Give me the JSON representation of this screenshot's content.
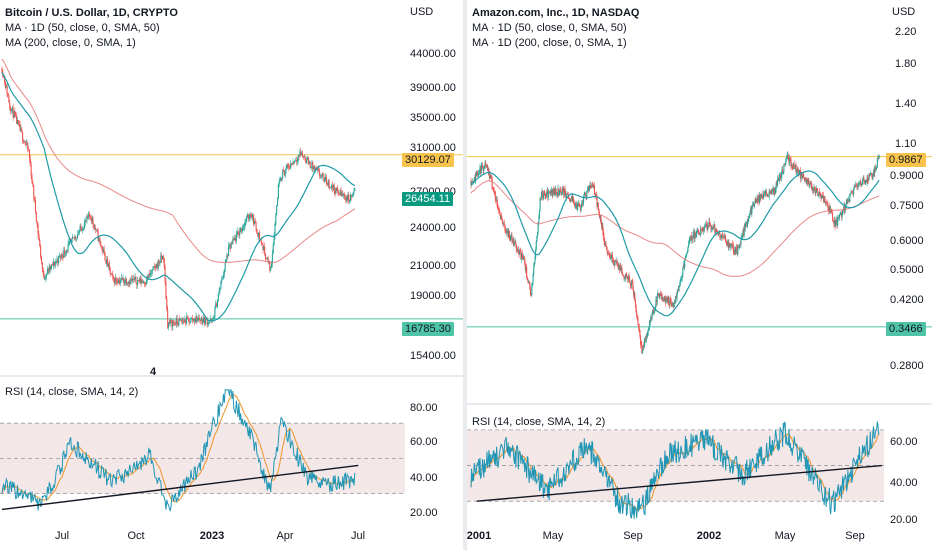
{
  "colors": {
    "up": "#26a69a",
    "down": "#ef5350",
    "ma50": "#1e9aa8",
    "ma200": "#e57373",
    "resistance": "#f7c34a",
    "support": "#4fc3a6",
    "rsi_line": "#2196b5",
    "rsi_ma": "#f0932b",
    "rsi_band": "#f3e7e7",
    "current_badge": "#089981"
  },
  "left": {
    "legend": {
      "title": "Bitcoin / U.S. Dollar, 1D, CRYPTO",
      "ma50": "MA · 1D (50, close, 0, SMA, 50)",
      "ma200": "MA (200, close, 0, SMA, 1)"
    },
    "currency": "USD",
    "price_axis": [
      "44000.00",
      "39000.00",
      "35000.00",
      "31000.00",
      "27000.00",
      "24000.00",
      "21000.00",
      "19000.00",
      "15400.00"
    ],
    "badges": {
      "resistance": "30129.07",
      "current": "26454.11",
      "support": "16785.30"
    },
    "rsi_legend": "RSI (14, close, SMA, 14, 2)",
    "rsi_axis": [
      "80.00",
      "60.00",
      "40.00",
      "20.00"
    ],
    "x_labels": [
      "Jul",
      "Oct",
      "2023",
      "Apr",
      "Jul"
    ],
    "stray_mark": "4",
    "chart_data": {
      "type": "candlestick",
      "title": "Bitcoin / U.S. Dollar, 1D, CRYPTO",
      "ylabel": "USD",
      "y_scale": "log",
      "ylim": [
        14500,
        47000
      ],
      "x_start": "2022-05-01",
      "x_end": "2023-07-20",
      "key_points": [
        {
          "x": "2022-05-01",
          "y": 41000
        },
        {
          "x": "2022-05-10",
          "y": 36000
        },
        {
          "x": "2022-06-01",
          "y": 30500
        },
        {
          "x": "2022-06-18",
          "y": 19500
        },
        {
          "x": "2022-07-15",
          "y": 21500
        },
        {
          "x": "2022-08-12",
          "y": 24300
        },
        {
          "x": "2022-09-07",
          "y": 19300
        },
        {
          "x": "2022-10-15",
          "y": 19200
        },
        {
          "x": "2022-11-05",
          "y": 21000
        },
        {
          "x": "2022-11-10",
          "y": 16500
        },
        {
          "x": "2022-12-15",
          "y": 16800
        },
        {
          "x": "2023-01-01",
          "y": 16600
        },
        {
          "x": "2023-01-20",
          "y": 21500
        },
        {
          "x": "2023-02-15",
          "y": 24500
        },
        {
          "x": "2023-03-10",
          "y": 20000
        },
        {
          "x": "2023-03-20",
          "y": 27800
        },
        {
          "x": "2023-04-14",
          "y": 30300
        },
        {
          "x": "2023-05-01",
          "y": 28500
        },
        {
          "x": "2023-05-25",
          "y": 26500
        },
        {
          "x": "2023-06-10",
          "y": 25700
        },
        {
          "x": "2023-06-16",
          "y": 26454
        }
      ],
      "series": [
        {
          "name": "MA · 1D (50, close, 0, SMA, 50)",
          "role": "ma50"
        },
        {
          "name": "MA (200, close, 0, SMA, 1)",
          "role": "ma200"
        }
      ],
      "horizontal_levels": [
        {
          "value": 30129.07,
          "role": "resistance"
        },
        {
          "value": 16785.3,
          "role": "support"
        }
      ],
      "rsi": {
        "label": "RSI (14, close, SMA, 14, 2)",
        "ylim": [
          15,
          90
        ],
        "band": [
          30,
          70
        ],
        "midline": 50,
        "key_points": [
          {
            "x": "2022-05-01",
            "y": 35
          },
          {
            "x": "2022-06-18",
            "y": 24
          },
          {
            "x": "2022-07-20",
            "y": 58
          },
          {
            "x": "2022-09-07",
            "y": 36
          },
          {
            "x": "2022-10-20",
            "y": 52
          },
          {
            "x": "2022-11-10",
            "y": 22
          },
          {
            "x": "2022-12-15",
            "y": 44
          },
          {
            "x": "2023-01-18",
            "y": 90
          },
          {
            "x": "2023-02-15",
            "y": 63
          },
          {
            "x": "2023-03-10",
            "y": 30
          },
          {
            "x": "2023-03-22",
            "y": 73
          },
          {
            "x": "2023-04-20",
            "y": 40
          },
          {
            "x": "2023-05-12",
            "y": 35
          },
          {
            "x": "2023-06-16",
            "y": 38
          }
        ],
        "trendline": [
          {
            "x": "2022-05-01",
            "y": 21
          },
          {
            "x": "2023-06-20",
            "y": 46
          }
        ]
      }
    }
  },
  "right": {
    "legend": {
      "title": "Amazon.com, Inc., 1D, NASDAQ",
      "ma50": "MA · 1D (50, close, 0, SMA, 50)",
      "ma200": "MA · 1D (200, close, 0, SMA, 1)"
    },
    "currency": "USD",
    "price_axis": [
      "2.20",
      "1.80",
      "1.40",
      "1.10",
      "0.9000",
      "0.7500",
      "0.6000",
      "0.5000",
      "0.4200",
      "0.2800"
    ],
    "badges": {
      "resistance": "0.9867",
      "support": "0.3466"
    },
    "rsi_legend": "RSI (14, close, SMA, 14, 2)",
    "rsi_axis": [
      "60.00",
      "40.00",
      "20.00"
    ],
    "x_labels": [
      "2001",
      "May",
      "Sep",
      "2002",
      "May",
      "Sep"
    ],
    "chart_data": {
      "type": "candlestick",
      "title": "Amazon.com, Inc., 1D, NASDAQ",
      "ylabel": "USD",
      "y_scale": "log",
      "ylim": [
        0.25,
        2.4
      ],
      "x_start": "2001-01-01",
      "x_end": "2002-10-10",
      "key_points": [
        {
          "x": "2001-01-02",
          "y": 0.85
        },
        {
          "x": "2001-01-25",
          "y": 0.95
        },
        {
          "x": "2001-02-20",
          "y": 0.65
        },
        {
          "x": "2001-03-25",
          "y": 0.52
        },
        {
          "x": "2001-04-05",
          "y": 0.42
        },
        {
          "x": "2001-04-20",
          "y": 0.78
        },
        {
          "x": "2001-05-25",
          "y": 0.8
        },
        {
          "x": "2001-06-20",
          "y": 0.72
        },
        {
          "x": "2001-07-10",
          "y": 0.85
        },
        {
          "x": "2001-08-01",
          "y": 0.55
        },
        {
          "x": "2001-09-10",
          "y": 0.45
        },
        {
          "x": "2001-09-25",
          "y": 0.3
        },
        {
          "x": "2001-10-20",
          "y": 0.42
        },
        {
          "x": "2001-11-15",
          "y": 0.4
        },
        {
          "x": "2001-12-10",
          "y": 0.6
        },
        {
          "x": "2002-01-10",
          "y": 0.65
        },
        {
          "x": "2002-02-20",
          "y": 0.55
        },
        {
          "x": "2002-03-20",
          "y": 0.75
        },
        {
          "x": "2002-04-20",
          "y": 0.8
        },
        {
          "x": "2002-05-10",
          "y": 0.98
        },
        {
          "x": "2002-06-05",
          "y": 0.86
        },
        {
          "x": "2002-07-10",
          "y": 0.75
        },
        {
          "x": "2002-07-25",
          "y": 0.65
        },
        {
          "x": "2002-08-25",
          "y": 0.82
        },
        {
          "x": "2002-09-20",
          "y": 0.88
        },
        {
          "x": "2002-10-01",
          "y": 0.9867
        }
      ],
      "series": [
        {
          "name": "MA · 1D (50, close, 0, SMA, 50)",
          "role": "ma50"
        },
        {
          "name": "MA · 1D (200, close, 0, SMA, 1)",
          "role": "ma200"
        }
      ],
      "horizontal_levels": [
        {
          "value": 0.9867,
          "role": "resistance"
        },
        {
          "value": 0.3466,
          "role": "support"
        }
      ],
      "rsi": {
        "label": "RSI (14, close, SMA, 14, 2)",
        "ylim": [
          15,
          80
        ],
        "band": [
          30,
          70
        ],
        "midline": 50,
        "key_points": [
          {
            "x": "2001-01-02",
            "y": 45
          },
          {
            "x": "2001-03-01",
            "y": 60
          },
          {
            "x": "2001-05-01",
            "y": 35
          },
          {
            "x": "2001-07-01",
            "y": 62
          },
          {
            "x": "2001-08-20",
            "y": 30
          },
          {
            "x": "2001-09-25",
            "y": 25
          },
          {
            "x": "2001-11-01",
            "y": 55
          },
          {
            "x": "2002-01-01",
            "y": 65
          },
          {
            "x": "2002-03-01",
            "y": 45
          },
          {
            "x": "2002-05-05",
            "y": 68
          },
          {
            "x": "2002-07-20",
            "y": 28
          },
          {
            "x": "2002-09-01",
            "y": 55
          },
          {
            "x": "2002-10-01",
            "y": 72
          }
        ],
        "trendline": [
          {
            "x": "2001-01-10",
            "y": 30
          },
          {
            "x": "2002-10-05",
            "y": 50
          }
        ]
      }
    }
  }
}
